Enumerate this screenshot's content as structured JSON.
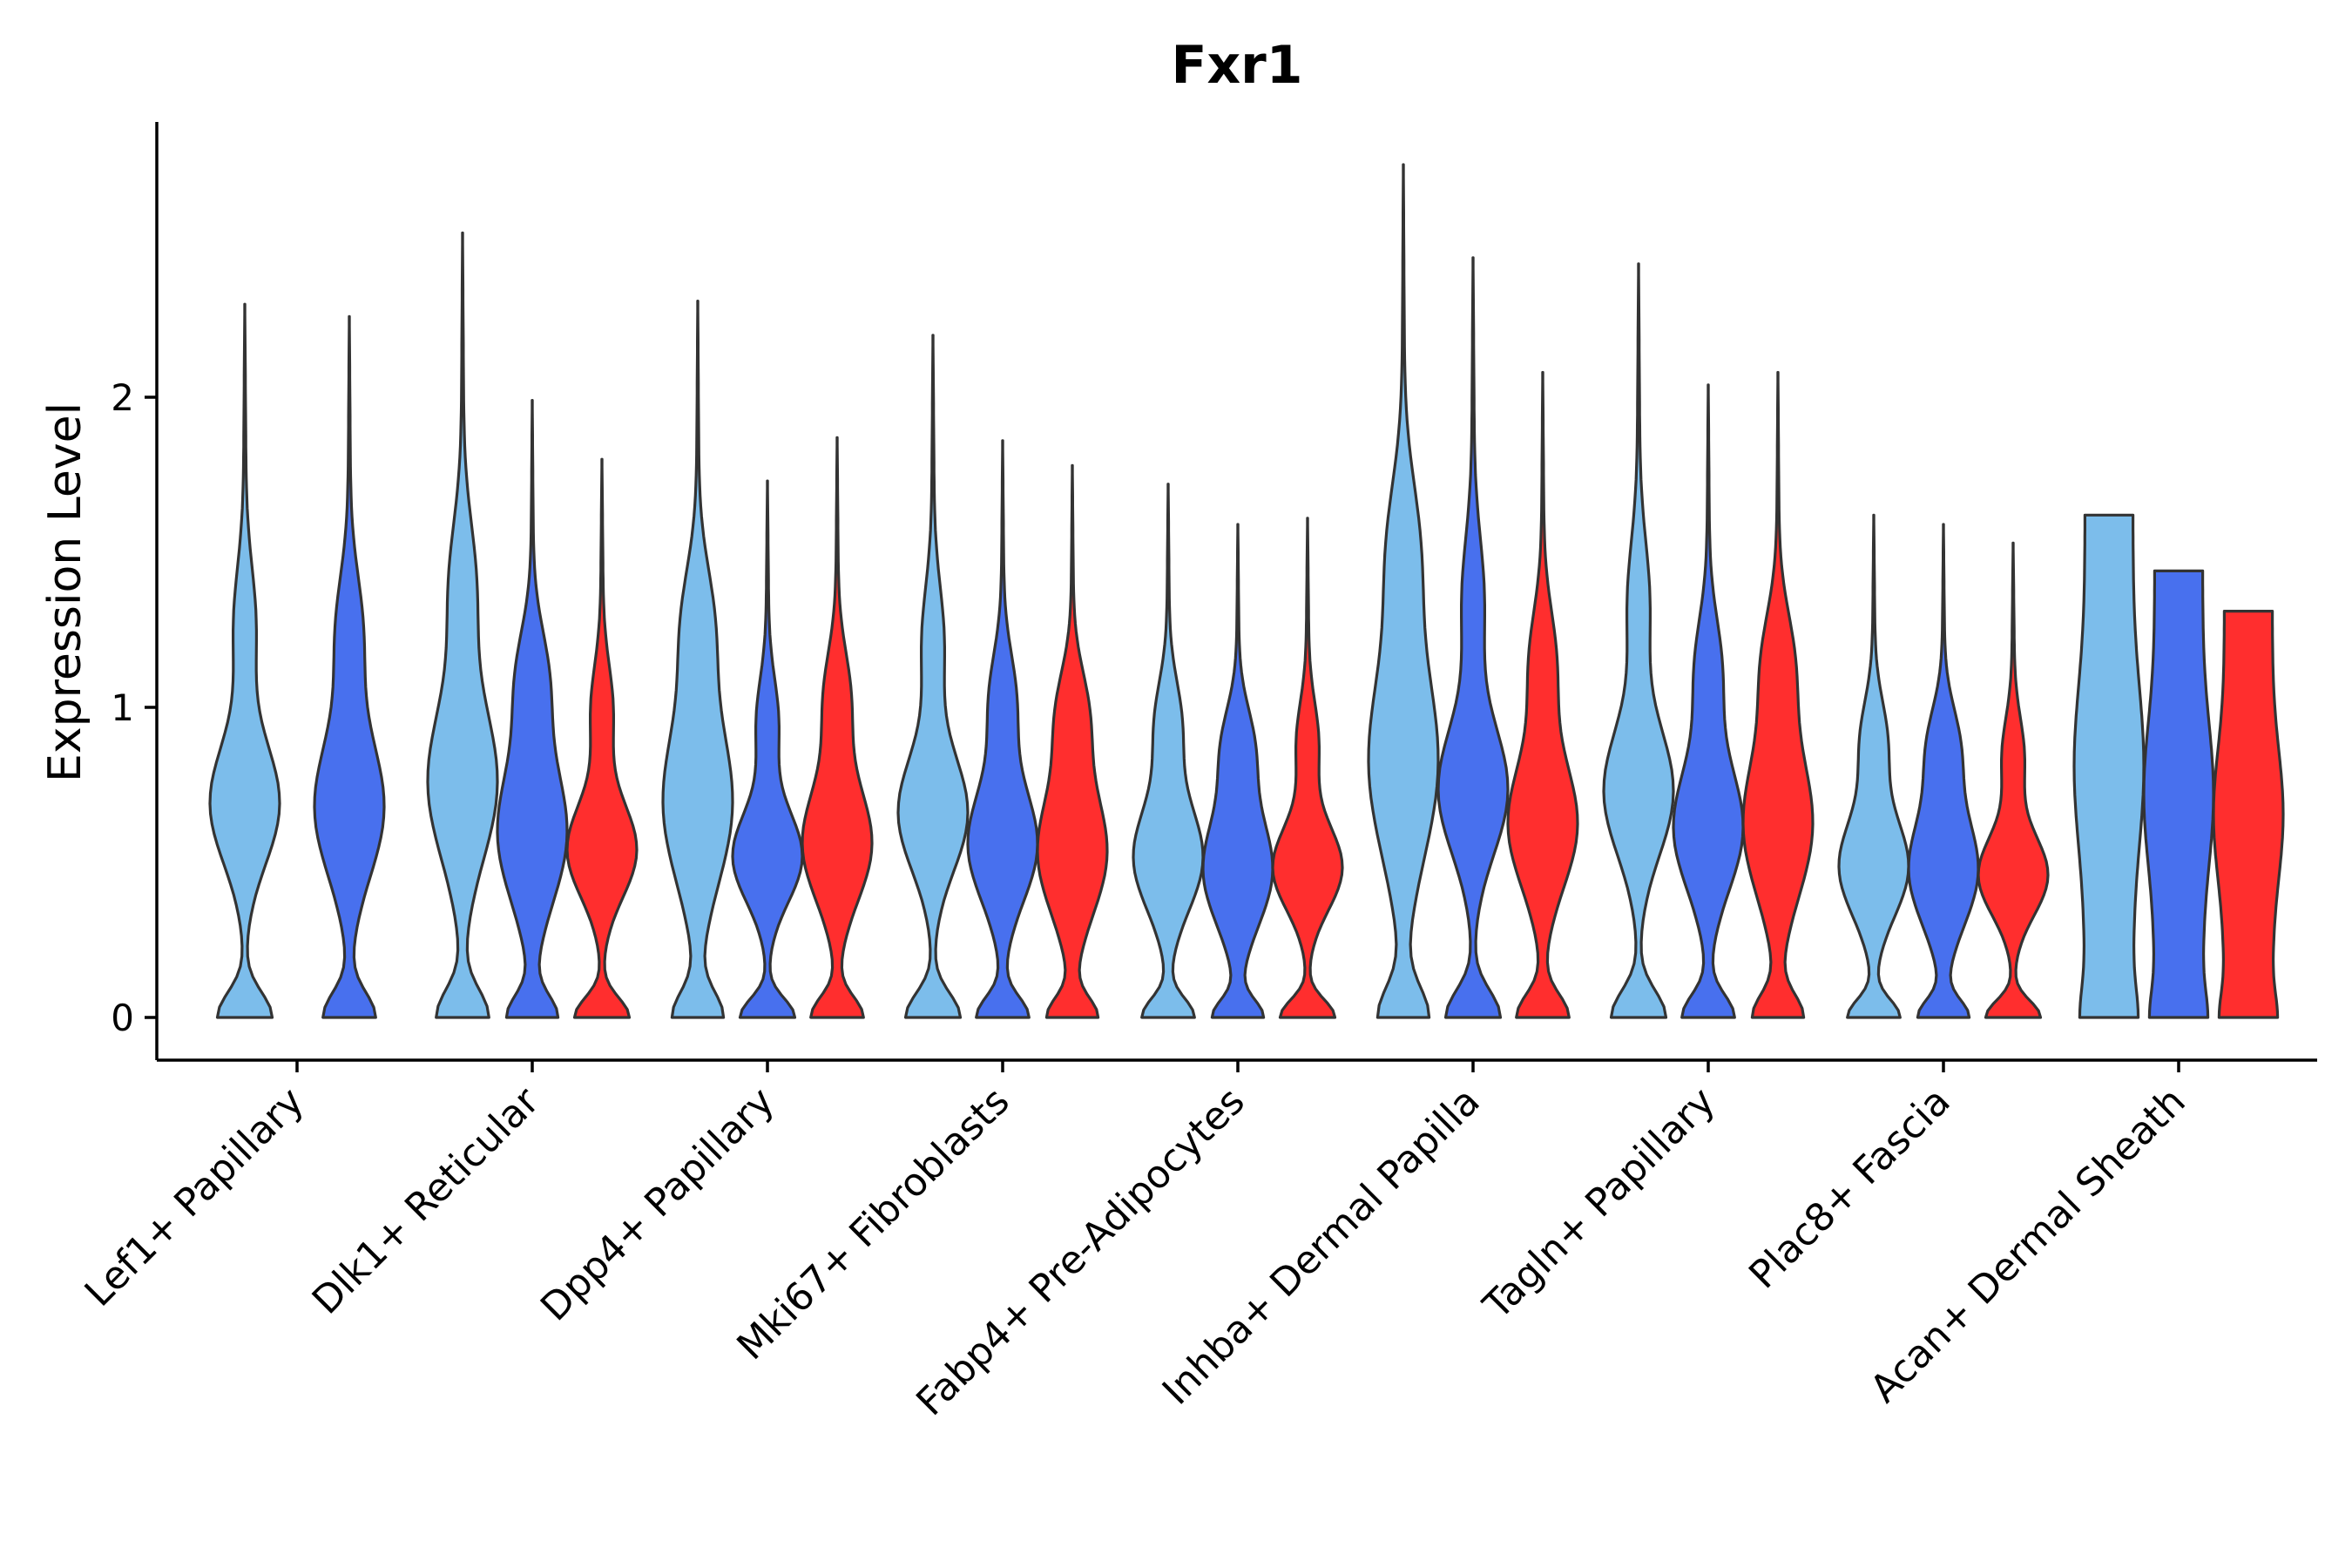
{
  "chart_data": {
    "type": "violin",
    "title": "Fxr1",
    "xlabel": "",
    "ylabel": "Expression Level",
    "ylim": [
      -0.14,
      2.9
    ],
    "yticks": [
      0,
      1,
      2
    ],
    "categories": [
      "Lef1+ Papillary",
      "Dlk1+ Reticular",
      "Dpp4+ Papillary",
      "Mki67+ Fibroblasts",
      "Fabp4+ Pre-Adipocytes",
      "Inhba+ Dermal Papilla",
      "Tagln+ Papillary",
      "Plac8+ Fascia",
      "Acan+ Dermal Sheath"
    ],
    "series": [
      {
        "name": "group1",
        "color": "#7CBDEB",
        "max": [
          2.3,
          2.53,
          2.31,
          2.2,
          1.72,
          2.75,
          2.43,
          1.62,
          1.62
        ]
      },
      {
        "name": "group2",
        "color": "#4870EE",
        "max": [
          2.26,
          1.99,
          1.73,
          1.86,
          1.59,
          2.45,
          2.04,
          1.59,
          1.44
        ]
      },
      {
        "name": "group3",
        "color": "#FF2E2E",
        "max": [
          null,
          1.8,
          1.87,
          1.78,
          1.61,
          2.08,
          2.08,
          1.53,
          1.31
        ]
      }
    ]
  }
}
